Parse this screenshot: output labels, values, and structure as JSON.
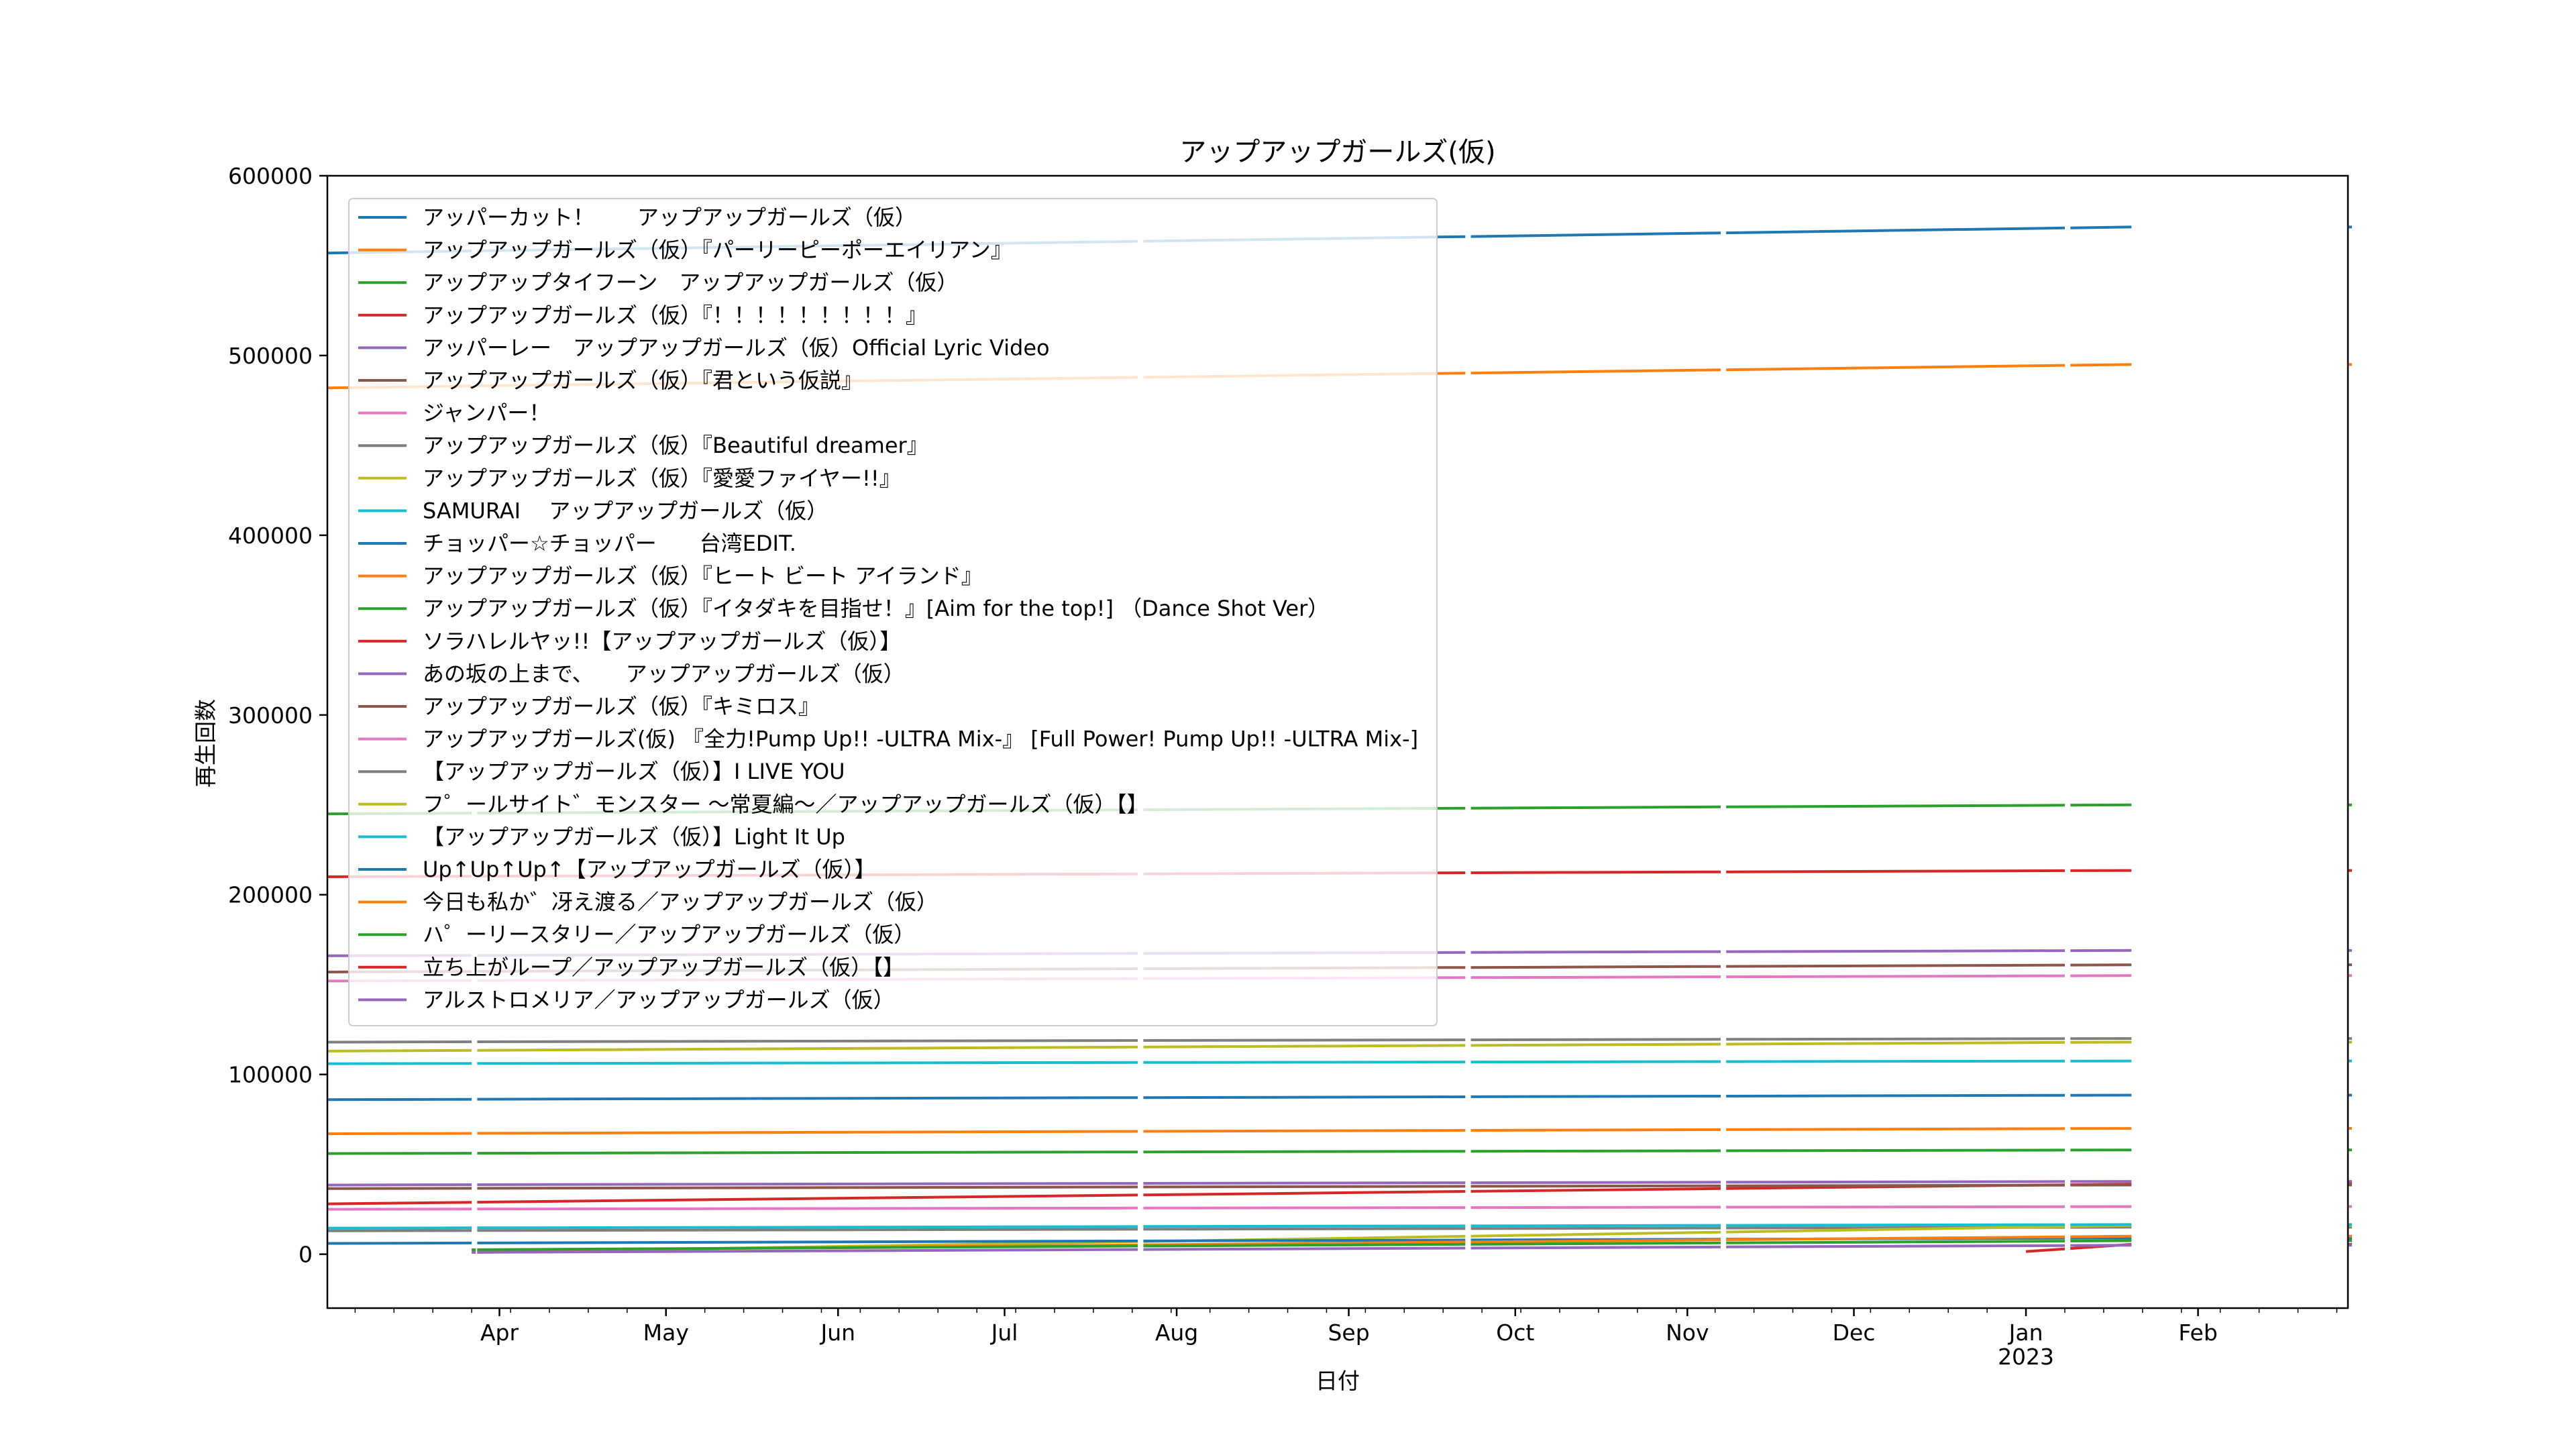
{
  "chart_data": {
    "type": "line",
    "title": "アップアップガールズ(仮)",
    "xlabel": "日付",
    "ylabel": "再生回数",
    "xlim": [
      "2022-03-01",
      "2023-02-28"
    ],
    "ylim": [
      -30000,
      600000
    ],
    "yticks": [
      0,
      100000,
      200000,
      300000,
      400000,
      500000,
      600000
    ],
    "ytick_labels": [
      "0",
      "100000",
      "200000",
      "300000",
      "400000",
      "500000",
      "600000"
    ],
    "xticks": [
      {
        "date": "2022-04-01",
        "label": "Apr",
        "label2": ""
      },
      {
        "date": "2022-05-01",
        "label": "May",
        "label2": ""
      },
      {
        "date": "2022-06-01",
        "label": "Jun",
        "label2": ""
      },
      {
        "date": "2022-07-01",
        "label": "Jul",
        "label2": ""
      },
      {
        "date": "2022-08-01",
        "label": "Aug",
        "label2": ""
      },
      {
        "date": "2022-09-01",
        "label": "Sep",
        "label2": ""
      },
      {
        "date": "2022-10-01",
        "label": "Oct",
        "label2": ""
      },
      {
        "date": "2022-11-01",
        "label": "Nov",
        "label2": ""
      },
      {
        "date": "2022-12-01",
        "label": "Dec",
        "label2": ""
      },
      {
        "date": "2023-01-01",
        "label": "Jan",
        "label2": "2023"
      },
      {
        "date": "2023-02-01",
        "label": "Feb",
        "label2": ""
      }
    ],
    "grid": false,
    "legend_position": "upper left",
    "segments": [
      [
        "2022-03-01",
        "2022-03-27"
      ],
      [
        "2022-03-28",
        "2022-07-25"
      ],
      [
        "2022-07-26",
        "2022-09-22"
      ],
      [
        "2022-09-23",
        "2022-11-07"
      ],
      [
        "2022-11-08",
        "2023-01-08"
      ],
      [
        "2023-01-09",
        "2023-01-20"
      ],
      [
        "2023-02-28",
        "2023-02-28"
      ]
    ],
    "series": [
      {
        "name": "アッパーカット！　　アップアップガールズ（仮）",
        "color": "#1f77b4",
        "start": "2022-03-01",
        "v0": 557000,
        "v1": 571500
      },
      {
        "name": "アップアップガールズ（仮）『パーリーピーポーエイリアン』",
        "color": "#ff7f0e",
        "start": "2022-03-01",
        "v0": 482000,
        "v1": 495000
      },
      {
        "name": "アップアップタイフーン　アップアップガールズ（仮）",
        "color": "#2ca02c",
        "start": "2022-03-01",
        "v0": 245000,
        "v1": 250000
      },
      {
        "name": "アップアップガールズ（仮）『！！！！！！！！！』",
        "color": "#d62728",
        "start": "2022-03-01",
        "v0": 210000,
        "v1": 213500
      },
      {
        "name": "アッパーレー　アップアップガールズ（仮）Official Lyric Video",
        "color": "#9467bd",
        "start": "2022-03-01",
        "v0": 166000,
        "v1": 169000
      },
      {
        "name": "アップアップガールズ（仮）『君という仮説』",
        "color": "#8c564b",
        "start": "2022-03-01",
        "v0": 157000,
        "v1": 161000
      },
      {
        "name": "ジャンパー！",
        "color": "#e377c2",
        "start": "2022-03-01",
        "v0": 152000,
        "v1": 155000
      },
      {
        "name": "アップアップガールズ（仮）『Beautiful dreamer』",
        "color": "#7f7f7f",
        "start": "2022-03-01",
        "v0": 118000,
        "v1": 120000
      },
      {
        "name": "アップアップガールズ（仮）『愛愛ファイヤー!!』",
        "color": "#bcbd22",
        "start": "2022-03-01",
        "v0": 113000,
        "v1": 118000
      },
      {
        "name": "SAMURAI　 アップアップガールズ（仮）",
        "color": "#17becf",
        "start": "2022-03-01",
        "v0": 106000,
        "v1": 107500
      },
      {
        "name": "チョッパー☆チョッパー　　台湾EDIT.",
        "color": "#1f77b4",
        "start": "2022-03-01",
        "v0": 86000,
        "v1": 88500
      },
      {
        "name": "アップアップガールズ（仮）『ヒート ビート アイランド』",
        "color": "#ff7f0e",
        "start": "2022-03-01",
        "v0": 67000,
        "v1": 70000
      },
      {
        "name": "アップアップガールズ（仮）『イタダキを目指せ！』[Aim for the top!] （Dance Shot Ver）",
        "color": "#2ca02c",
        "start": "2022-03-01",
        "v0": 56000,
        "v1": 58000
      },
      {
        "name": "ソラハレルヤッ!!【アップアップガールズ（仮）】",
        "color": "#d62728",
        "start": "2022-03-01",
        "v0": 28000,
        "v1": 39000
      },
      {
        "name": "あの坂の上まで、　　アップアップガールズ（仮）",
        "color": "#9467bd",
        "start": "2022-03-01",
        "v0": 38500,
        "v1": 40500
      },
      {
        "name": "アップアップガールズ（仮）『キミロス』",
        "color": "#8c564b",
        "start": "2022-03-01",
        "v0": 36500,
        "v1": 38500
      },
      {
        "name": "アップアップガールズ(仮) 『全力!Pump Up!! -ULTRA Mix-』 [Full Power! Pump Up!! -ULTRA Mix-]",
        "color": "#e377c2",
        "start": "2022-03-01",
        "v0": 25000,
        "v1": 26500
      },
      {
        "name": "【アップアップガールズ（仮）】I LIVE YOU",
        "color": "#7f7f7f",
        "start": "2022-03-01",
        "v0": 13000,
        "v1": 15000
      },
      {
        "name": "フ゜ールサイト゛モンスター ～常夏編～／アップアップガールズ（仮）【】",
        "color": "#bcbd22",
        "start": "2022-03-27",
        "v0": 1000,
        "v1": 16000
      },
      {
        "name": "【アップアップガールズ（仮）】Light It Up",
        "color": "#17becf",
        "start": "2022-03-01",
        "v0": 14500,
        "v1": 16500
      },
      {
        "name": "Up↑Up↑Up↑【アップアップガールズ（仮）】",
        "color": "#1f77b4",
        "start": "2022-03-01",
        "v0": 6000,
        "v1": 9000
      },
      {
        "name": "今日も私か゛冴え渡る／アップアップガールズ（仮）",
        "color": "#ff7f0e",
        "start": "2022-03-27",
        "v0": 2000,
        "v1": 10000
      },
      {
        "name": "ハ゜ーリースタリー／アップアップガールズ（仮）",
        "color": "#2ca02c",
        "start": "2022-03-27",
        "v0": 2500,
        "v1": 7500
      },
      {
        "name": "立ち上がループ／アップアップガールズ（仮）【】",
        "color": "#d62728",
        "start": "2023-01-01",
        "v0": 1500,
        "v1": 5500
      },
      {
        "name": "アルストロメリア／アップアップガールズ（仮）",
        "color": "#9467bd",
        "start": "2022-03-27",
        "v0": 1000,
        "v1": 5000
      }
    ]
  }
}
